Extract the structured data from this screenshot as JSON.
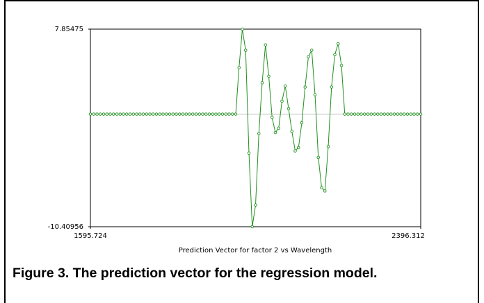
{
  "chart_data": {
    "type": "line",
    "xlabel": "Prediction Vector for factor 2 vs Wavelength",
    "caption": "Figure 3.  The prediction vector for the regression model.",
    "x": [
      1595.724,
      1603.73,
      1611.74,
      1619.74,
      1627.75,
      1635.75,
      1643.76,
      1651.77,
      1659.77,
      1667.78,
      1675.78,
      1683.79,
      1691.79,
      1699.8,
      1707.81,
      1715.81,
      1723.82,
      1731.82,
      1739.83,
      1747.84,
      1755.84,
      1763.85,
      1771.85,
      1779.86,
      1787.87,
      1795.87,
      1803.88,
      1811.88,
      1819.89,
      1827.89,
      1835.9,
      1843.91,
      1851.91,
      1859.92,
      1867.92,
      1875.93,
      1883.94,
      1891.94,
      1899.95,
      1907.95,
      1915.96,
      1923.97,
      1931.97,
      1939.98,
      1947.98,
      1955.99,
      1963.99,
      1972.0,
      1980.01,
      1988.01,
      1996.02,
      2004.02,
      2012.03,
      2020.04,
      2028.04,
      2036.05,
      2044.05,
      2052.06,
      2060.07,
      2068.07,
      2076.08,
      2084.08,
      2092.09,
      2100.09,
      2108.1,
      2116.11,
      2124.11,
      2132.12,
      2140.12,
      2148.13,
      2156.14,
      2164.14,
      2172.15,
      2180.15,
      2188.16,
      2196.17,
      2204.17,
      2212.18,
      2220.18,
      2228.19,
      2236.19,
      2244.2,
      2252.21,
      2260.21,
      2268.22,
      2276.22,
      2284.23,
      2292.24,
      2300.24,
      2308.25,
      2316.25,
      2324.26,
      2332.27,
      2340.27,
      2348.28,
      2356.28,
      2364.29,
      2372.29,
      2380.3,
      2388.31,
      2396.312
    ],
    "values": [
      0,
      0,
      0,
      0,
      0,
      0,
      0,
      0,
      0,
      0,
      0,
      0,
      0,
      0,
      0,
      0,
      0,
      0,
      0,
      0,
      0,
      0,
      0,
      0,
      0,
      0,
      0,
      0,
      0,
      0,
      0,
      0,
      0,
      0,
      0,
      0,
      0,
      0,
      0,
      0,
      0,
      0,
      0,
      0,
      0,
      4.3,
      7.85475,
      5.9,
      -3.6,
      -10.40956,
      -8.4,
      -1.8,
      2.9,
      6.4,
      3.5,
      -0.3,
      -1.7,
      -1.3,
      1.2,
      2.6,
      0.5,
      -1.6,
      -3.4,
      -3.1,
      -0.8,
      2.5,
      5.3,
      5.9,
      1.8,
      -4.0,
      -6.8,
      -7.1,
      -3.0,
      2.5,
      5.5,
      6.5,
      4.5,
      0,
      0,
      0,
      0,
      0,
      0,
      0,
      0,
      0,
      0,
      0,
      0,
      0,
      0,
      0,
      0,
      0,
      0,
      0,
      0,
      0,
      0,
      0,
      0
    ],
    "color": "#1f8f1f",
    "xlim": [
      1595.724,
      2396.312
    ],
    "xticks": [
      1595.724,
      2396.312
    ],
    "ylim": [
      -10.40956,
      7.85475
    ],
    "yticks": [
      7.85475,
      -10.40956
    ],
    "zero_line": true
  }
}
